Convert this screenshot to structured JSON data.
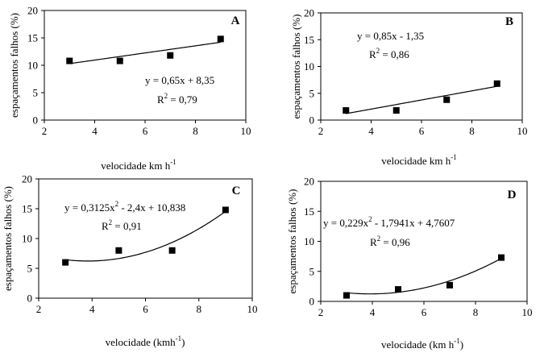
{
  "chart_data": [
    {
      "type": "scatter",
      "panel": "A",
      "xlabel": "velocidade km h",
      "xlabel_sup": "-1",
      "ylabel": "espaçamentos falhos (%)",
      "xlim": [
        2,
        10
      ],
      "ylim": [
        0,
        20
      ],
      "xticks": [
        "2",
        "4",
        "6",
        "8",
        "10"
      ],
      "yticks": [
        "0",
        "5",
        "10",
        "15",
        "20"
      ],
      "x": [
        3,
        5,
        7,
        9
      ],
      "y": [
        10.8,
        10.8,
        11.8,
        14.8
      ],
      "trend": {
        "kind": "linear",
        "coef": [
          8.35,
          0.65
        ]
      },
      "equation": {
        "pre": "y = 0,65x + 8,35",
        "mid": "",
        "post": ""
      },
      "r2": {
        "label": "R",
        "sup": "2",
        "value": " = 0,79"
      }
    },
    {
      "type": "scatter",
      "panel": "B",
      "xlabel": "velocidade km h",
      "xlabel_sup": "-1",
      "ylabel": "espaçamentos falhos (%)",
      "xlim": [
        2,
        10
      ],
      "ylim": [
        0,
        20
      ],
      "xticks": [
        "2",
        "4",
        "6",
        "8",
        "10"
      ],
      "yticks": [
        "0",
        "5",
        "10",
        "15",
        "20"
      ],
      "x": [
        3,
        5,
        7,
        9
      ],
      "y": [
        1.8,
        1.8,
        3.8,
        6.8
      ],
      "trend": {
        "kind": "linear",
        "coef": [
          -1.35,
          0.85
        ]
      },
      "equation": {
        "pre": "y = 0,85x - 1,35",
        "mid": "",
        "post": ""
      },
      "r2": {
        "label": "R",
        "sup": "2",
        "value": " = 0,86"
      }
    },
    {
      "type": "scatter",
      "panel": "C",
      "xlabel": "velocidade (kmh",
      "xlabel_sup": "-1",
      "xlabel_post": ")",
      "ylabel": "espaçamentos falhos (%)",
      "xlim": [
        2,
        10
      ],
      "ylim": [
        0,
        20
      ],
      "xticks": [
        "2",
        "4",
        "6",
        "8",
        "10"
      ],
      "yticks": [
        "0",
        "5",
        "10",
        "15",
        "20"
      ],
      "x": [
        3,
        5,
        7,
        9
      ],
      "y": [
        6.0,
        8.0,
        8.0,
        14.8
      ],
      "trend": {
        "kind": "quadratic",
        "coef": [
          10.838,
          -2.4,
          0.3125
        ]
      },
      "equation": {
        "pre": "y = 0,3125x",
        "sup": "2",
        "post": " - 2,4x + 10,838"
      },
      "r2": {
        "label": "R",
        "sup": "2",
        "value": " = 0,91"
      }
    },
    {
      "type": "scatter",
      "panel": "D",
      "xlabel": "velocidade (km h",
      "xlabel_sup": "-1",
      "xlabel_post": ")",
      "ylabel": "espaçamentos falhos (%)",
      "xlim": [
        2,
        10
      ],
      "ylim": [
        0,
        20
      ],
      "xticks": [
        "2",
        "4",
        "6",
        "8",
        "10"
      ],
      "yticks": [
        "0",
        "5",
        "10",
        "15",
        "20"
      ],
      "x": [
        3,
        5,
        7,
        9
      ],
      "y": [
        1.0,
        2.0,
        2.7,
        7.3
      ],
      "trend": {
        "kind": "quadratic",
        "coef": [
          4.7607,
          -1.7941,
          0.229
        ]
      },
      "equation": {
        "pre": "y = 0,229x",
        "sup": "2",
        "post": " - 1,7941x + 4,7607"
      },
      "r2": {
        "label": "R",
        "sup": "2",
        "value": " = 0,96"
      }
    }
  ]
}
